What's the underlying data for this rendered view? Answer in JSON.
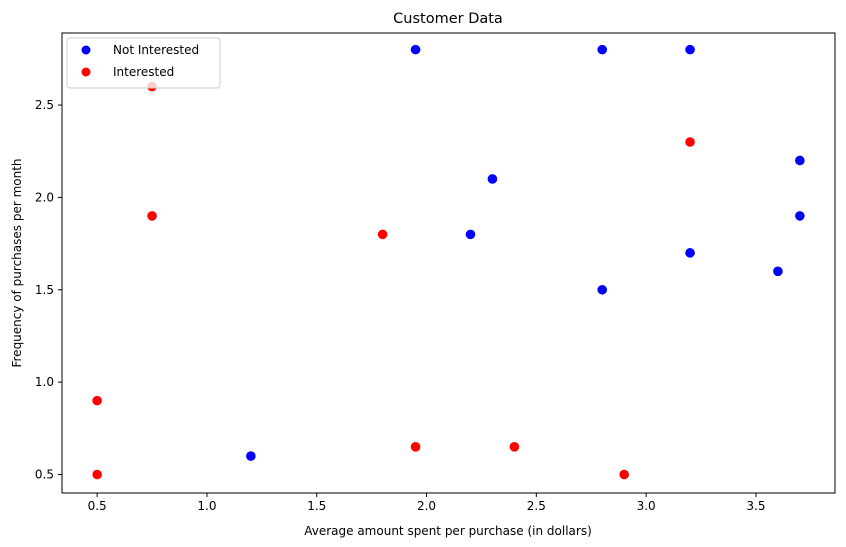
{
  "chart_data": {
    "type": "scatter",
    "title": "Customer Data",
    "xlabel": "Average amount spent per purchase (in dollars)",
    "ylabel": "Frequency of purchases per month",
    "xlim": [
      0.34,
      3.86
    ],
    "ylim": [
      0.4,
      2.89
    ],
    "xticks": [
      0.5,
      1.0,
      1.5,
      2.0,
      2.5,
      3.0,
      3.5
    ],
    "xtick_labels": [
      "0.5",
      "1.0",
      "1.5",
      "2.0",
      "2.5",
      "3.0",
      "3.5"
    ],
    "yticks": [
      0.5,
      1.0,
      1.5,
      2.0,
      2.5
    ],
    "ytick_labels": [
      "0.5",
      "1.0",
      "1.5",
      "2.0",
      "2.5"
    ],
    "grid": false,
    "legend_position": "top-left",
    "series": [
      {
        "name": "Not Interested",
        "color": "#0000ff",
        "points": [
          {
            "x": 1.95,
            "y": 2.8
          },
          {
            "x": 2.8,
            "y": 2.8
          },
          {
            "x": 3.2,
            "y": 2.8
          },
          {
            "x": 3.7,
            "y": 2.2
          },
          {
            "x": 2.3,
            "y": 2.1
          },
          {
            "x": 3.7,
            "y": 1.9
          },
          {
            "x": 2.2,
            "y": 1.8
          },
          {
            "x": 3.2,
            "y": 1.7
          },
          {
            "x": 3.6,
            "y": 1.6
          },
          {
            "x": 2.8,
            "y": 1.5
          },
          {
            "x": 1.2,
            "y": 0.6
          }
        ]
      },
      {
        "name": "Interested",
        "color": "#ff0000",
        "points": [
          {
            "x": 0.75,
            "y": 2.6
          },
          {
            "x": 3.2,
            "y": 2.3
          },
          {
            "x": 0.75,
            "y": 1.9
          },
          {
            "x": 1.8,
            "y": 1.8
          },
          {
            "x": 0.5,
            "y": 0.9
          },
          {
            "x": 1.95,
            "y": 0.65
          },
          {
            "x": 2.4,
            "y": 0.65
          },
          {
            "x": 0.5,
            "y": 0.5
          },
          {
            "x": 2.9,
            "y": 0.5
          }
        ]
      }
    ]
  }
}
